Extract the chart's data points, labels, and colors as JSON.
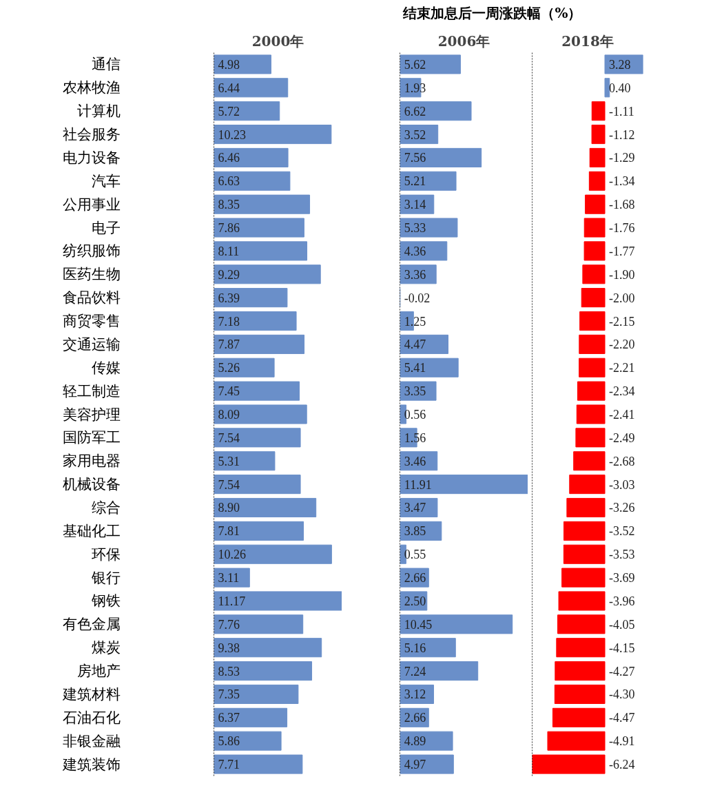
{
  "chart_data": [
    {
      "type": "bar",
      "orientation": "horizontal",
      "title": "2000年",
      "annotations": [
        "结束加息后一周涨跌幅（%）"
      ],
      "tick_labels": "y",
      "color": "#6a8fc9",
      "categories": [
        "通信",
        "农林牧渔",
        "计算机",
        "社会服务",
        "电力设备",
        "汽车",
        "公用事业",
        "电子",
        "纺织服饰",
        "医药生物",
        "食品饮料",
        "商贸零售",
        "交通运输",
        "传媒",
        "轻工制造",
        "美容护理",
        "国防军工",
        "家用电器",
        "机械设备",
        "综合",
        "基础化工",
        "环保",
        "银行",
        "钢铁",
        "有色金属",
        "煤炭",
        "房地产",
        "建筑材料",
        "石油石化",
        "非银金融",
        "建筑装饰"
      ],
      "values": [
        4.98,
        6.44,
        5.72,
        10.23,
        6.46,
        6.63,
        8.35,
        7.86,
        8.11,
        9.29,
        6.39,
        7.18,
        7.87,
        5.26,
        7.45,
        8.09,
        7.54,
        5.31,
        7.54,
        8.9,
        7.81,
        10.26,
        3.11,
        11.17,
        7.76,
        9.38,
        8.53,
        7.35,
        6.37,
        5.86,
        7.71
      ],
      "value_labels": [
        "4.98",
        "6.44",
        "5.72",
        "10.23",
        "6.46",
        "6.63",
        "8.35",
        "7.86",
        "8.11",
        "9.29",
        "6.39",
        "7.18",
        "7.87",
        "5.26",
        "7.45",
        "8.09",
        "7.54",
        "5.31",
        "7.54",
        "8.90",
        "7.81",
        "10.26",
        "3.11",
        "11.17",
        "7.76",
        "9.38",
        "8.53",
        "7.35",
        "6.37",
        "5.86",
        "7.71"
      ]
    },
    {
      "type": "bar",
      "orientation": "horizontal",
      "title": "2006年",
      "tick_labels": false,
      "color": "#6a8fc9",
      "categories": [
        null,
        null,
        null,
        null,
        null,
        null,
        null,
        null,
        null,
        null,
        null,
        null,
        null,
        null,
        null,
        null,
        null,
        null,
        null,
        null,
        null,
        null,
        null,
        null,
        null,
        null,
        null,
        null,
        null,
        null,
        null
      ],
      "values": [
        5.62,
        1.93,
        6.62,
        3.52,
        7.56,
        5.21,
        3.14,
        5.33,
        4.36,
        3.36,
        -0.02,
        1.25,
        4.47,
        5.41,
        3.35,
        0.56,
        1.56,
        3.46,
        11.91,
        3.47,
        3.85,
        0.55,
        2.66,
        2.5,
        10.45,
        5.16,
        7.24,
        3.12,
        2.66,
        4.89,
        4.97
      ],
      "value_labels": [
        "5.62",
        "1.93",
        "6.62",
        "3.52",
        "7.56",
        "5.21",
        "3.14",
        "5.33",
        "4.36",
        "3.36",
        "-0.02",
        "1.25",
        "4.47",
        "5.41",
        "3.35",
        "0.56",
        "1.56",
        "3.46",
        "11.91",
        "3.47",
        "3.85",
        "0.55",
        "2.66",
        "2.50",
        "10.45",
        "5.16",
        "7.24",
        "3.12",
        "2.66",
        "4.89",
        "4.97"
      ]
    },
    {
      "type": "bar",
      "orientation": "horizontal",
      "title": "2018年",
      "tick_labels": false,
      "categories": [
        null,
        null,
        null,
        null,
        null,
        null,
        null,
        null,
        null,
        null,
        null,
        null,
        null,
        null,
        null,
        null,
        null,
        null,
        null,
        null,
        null,
        null,
        null,
        null,
        null,
        null,
        null,
        null,
        null,
        null,
        null
      ],
      "values": [
        3.28,
        0.4,
        -1.11,
        -1.12,
        -1.29,
        -1.34,
        -1.68,
        -1.76,
        -1.77,
        -1.9,
        -2.0,
        -2.15,
        -2.2,
        -2.21,
        -2.34,
        -2.41,
        -2.49,
        -2.68,
        -3.03,
        -3.26,
        -3.52,
        -3.53,
        -3.69,
        -3.96,
        -4.05,
        -4.15,
        -4.27,
        -4.3,
        -4.47,
        -4.91,
        -6.24
      ],
      "colors": [
        "#6a8fc9",
        "#6a8fc9",
        "#ff0000",
        "#ff0000",
        "#ff0000",
        "#ff0000",
        "#ff0000",
        "#ff0000",
        "#ff0000",
        "#ff0000",
        "#ff0000",
        "#ff0000",
        "#ff0000",
        "#ff0000",
        "#ff0000",
        "#ff0000",
        "#ff0000",
        "#ff0000",
        "#ff0000",
        "#ff0000",
        "#ff0000",
        "#ff0000",
        "#ff0000",
        "#ff0000",
        "#ff0000",
        "#ff0000",
        "#ff0000",
        "#ff0000",
        "#ff0000",
        "#ff0000",
        "#ff0000"
      ],
      "value_labels": [
        "3.28",
        "0.40",
        "-1.11",
        "-1.12",
        "-1.29",
        "-1.34",
        "-1.68",
        "-1.76",
        "-1.77",
        "-1.90",
        "-2.00",
        "-2.15",
        "-2.20",
        "-2.21",
        "-2.34",
        "-2.41",
        "-2.49",
        "-2.68",
        "-3.03",
        "-3.26",
        "-3.52",
        "-3.53",
        "-3.69",
        "-3.96",
        "-4.05",
        "-4.15",
        "-4.27",
        "-4.30",
        "-4.47",
        "-4.91",
        "-6.24"
      ]
    }
  ]
}
